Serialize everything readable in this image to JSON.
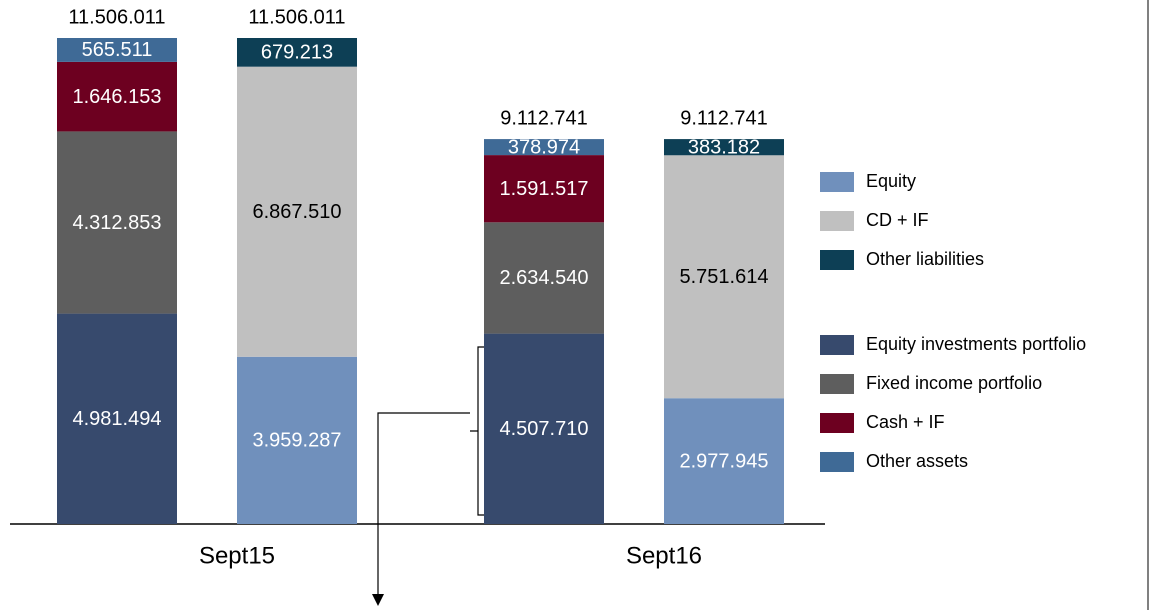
{
  "chart_data": {
    "type": "stacked_bar",
    "categories": [
      "Sept15",
      "Sept16"
    ],
    "stacks": [
      {
        "series": [
          {
            "name": "Equity investments portfolio",
            "color": "#374a6d",
            "values": [
              4981494,
              4507710
            ],
            "value_labels": [
              "4.981.494",
              "4.507.710"
            ]
          },
          {
            "name": "Fixed income portfolio",
            "color": "#5e5e5e",
            "values": [
              4312853,
              2634540
            ],
            "value_labels": [
              "4.312.853",
              "2.634.540"
            ]
          },
          {
            "name": "Cash + IF",
            "color": "#6d0020",
            "values": [
              1646153,
              1591517
            ],
            "value_labels": [
              "1.646.153",
              "1.591.517"
            ]
          },
          {
            "name": "Other assets",
            "color": "#3f6a96",
            "values": [
              565511,
              378974
            ],
            "value_labels": [
              "565.511",
              "378.974"
            ]
          }
        ],
        "totals": [
          11506011,
          9112741
        ],
        "total_labels": [
          "11.506.011",
          "9.112.741"
        ]
      },
      {
        "series": [
          {
            "name": "Equity",
            "color": "#7090bc",
            "values": [
              3959287,
              2977945
            ],
            "value_labels": [
              "3.959.287",
              "2.977.945"
            ]
          },
          {
            "name": "CD + IF",
            "color": "#c0c0c0",
            "values": [
              6867510,
              5751614
            ],
            "value_labels": [
              "6.867.510",
              "5.751.614"
            ]
          },
          {
            "name": "Other liabilities",
            "color": "#0d3f55",
            "values": [
              679213,
              383182
            ],
            "value_labels": [
              "679.213",
              "383.182"
            ]
          }
        ],
        "totals": [
          11506011,
          9112741
        ],
        "total_labels": [
          "11.506.011",
          "9.112.741"
        ]
      }
    ]
  }
}
